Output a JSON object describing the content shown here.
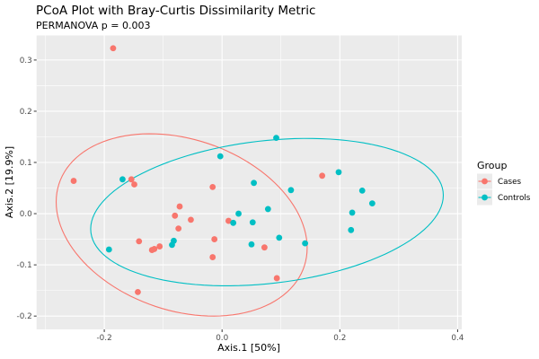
{
  "chart_data": {
    "type": "scatter",
    "title": "PCoA Plot with Bray-Curtis Dissimilarity Metric",
    "subtitle": "PERMANOVA p = 0.003",
    "xlabel": "Axis.1   [50%]",
    "ylabel": "Axis.2   [19.9%]",
    "xlim": [
      -0.315,
      0.407
    ],
    "ylim": [
      -0.226,
      0.348
    ],
    "x_ticks": [
      -0.2,
      0.0,
      0.2,
      0.4
    ],
    "x_tick_labels": [
      "-0.2",
      "0.0",
      "0.2",
      "0.4"
    ],
    "x_minor_ticks": [
      -0.3,
      -0.1,
      0.1,
      0.3
    ],
    "y_ticks": [
      -0.2,
      -0.1,
      0.0,
      0.1,
      0.2,
      0.3
    ],
    "y_tick_labels": [
      "-0.2",
      "-0.1",
      "0.0",
      "0.1",
      "0.2",
      "0.3"
    ],
    "y_minor_ticks": [
      -0.15,
      -0.05,
      0.05,
      0.15,
      0.25
    ],
    "grid": true,
    "legend": {
      "title": "Group",
      "position": "right"
    },
    "series": [
      {
        "name": "Cases",
        "color": "#F8766D",
        "points": [
          [
            -0.185,
            0.323
          ],
          [
            -0.252,
            0.064
          ],
          [
            -0.154,
            0.067
          ],
          [
            -0.149,
            0.057
          ],
          [
            -0.016,
            0.052
          ],
          [
            -0.072,
            0.014
          ],
          [
            -0.08,
            -0.004
          ],
          [
            -0.053,
            -0.012
          ],
          [
            -0.074,
            -0.029
          ],
          [
            0.011,
            -0.014
          ],
          [
            -0.141,
            -0.054
          ],
          [
            -0.106,
            -0.064
          ],
          [
            -0.115,
            -0.069
          ],
          [
            -0.119,
            -0.071
          ],
          [
            -0.013,
            -0.05
          ],
          [
            -0.016,
            -0.085
          ],
          [
            -0.143,
            -0.153
          ],
          [
            0.072,
            -0.066
          ],
          [
            0.093,
            -0.126
          ],
          [
            0.17,
            0.074
          ]
        ],
        "ellipse": {
          "cx": -0.0686,
          "cy": -0.022,
          "x_radius": 0.2131,
          "y_radius": 0.178,
          "phase_deg": 104.6
        }
      },
      {
        "name": "Controls",
        "color": "#00BFC4",
        "points": [
          [
            0.092,
            0.148
          ],
          [
            -0.003,
            0.112
          ],
          [
            -0.169,
            0.067
          ],
          [
            0.054,
            0.06
          ],
          [
            0.117,
            0.046
          ],
          [
            0.198,
            0.081
          ],
          [
            0.238,
            0.045
          ],
          [
            0.255,
            0.02
          ],
          [
            0.221,
            0.002
          ],
          [
            0.219,
            -0.032
          ],
          [
            0.078,
            0.009
          ],
          [
            0.028,
            0.0
          ],
          [
            0.019,
            -0.018
          ],
          [
            0.052,
            -0.017
          ],
          [
            0.097,
            -0.047
          ],
          [
            0.05,
            -0.06
          ],
          [
            0.141,
            -0.058
          ],
          [
            -0.082,
            -0.053
          ],
          [
            -0.085,
            -0.061
          ],
          [
            -0.192,
            -0.07
          ]
        ],
        "ellipse": {
          "cx": 0.0763,
          "cy": 0.003,
          "x_radius": 0.2994,
          "y_radius": 0.1439,
          "phase_deg": 76.8
        }
      }
    ]
  }
}
